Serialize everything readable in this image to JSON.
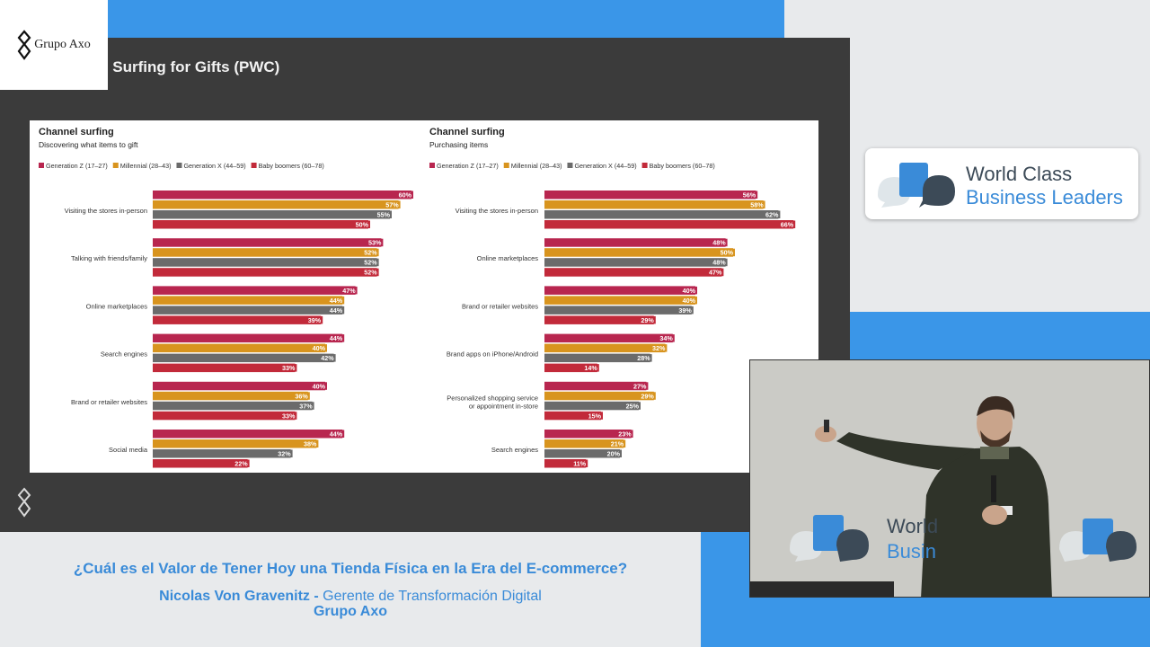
{
  "logo": {
    "text": "Grupo Axo"
  },
  "slide": {
    "title": "nel Surfing for Gifts (PWC)"
  },
  "legend": [
    {
      "name": "Generation Z (17–27)",
      "color": "#b8264f"
    },
    {
      "name": "Millennial (28–43)",
      "color": "#d8941e"
    },
    {
      "name": "Generation X (44–59)",
      "color": "#6b6b6b"
    },
    {
      "name": "Baby boomers (60–78)",
      "color": "#c22a3a"
    }
  ],
  "chart_data": [
    {
      "type": "bar",
      "title": "Channel surfing",
      "subtitle": "Discovering what items to gift",
      "categories": [
        "Visiting the stores in-person",
        "Talking with friends/family",
        "Online marketplaces",
        "Search engines",
        "Brand or retailer websites",
        "Social media"
      ],
      "series": [
        {
          "name": "Generation Z (17–27)",
          "values": [
            60,
            53,
            47,
            44,
            40,
            44
          ]
        },
        {
          "name": "Millennial (28–43)",
          "values": [
            57,
            52,
            44,
            40,
            36,
            38
          ]
        },
        {
          "name": "Generation X (44–59)",
          "values": [
            55,
            52,
            44,
            42,
            37,
            32
          ]
        },
        {
          "name": "Baby boomers (60–78)",
          "values": [
            50,
            52,
            39,
            33,
            33,
            22
          ]
        }
      ]
    },
    {
      "type": "bar",
      "title": "Channel surfing",
      "subtitle": "Purchasing items",
      "categories": [
        "Visiting the stores in-person",
        "Online marketplaces",
        "Brand or retailer websites",
        "Brand apps on iPhone/Android",
        "Personalized shopping service or appointment in-store",
        "Search engines"
      ],
      "series": [
        {
          "name": "Generation Z (17–27)",
          "values": [
            56,
            48,
            40,
            34,
            27,
            23
          ]
        },
        {
          "name": "Millennial (28–43)",
          "values": [
            58,
            50,
            40,
            32,
            29,
            21
          ]
        },
        {
          "name": "Generation X (44–59)",
          "values": [
            62,
            48,
            39,
            28,
            25,
            20
          ]
        },
        {
          "name": "Baby boomers (60–78)",
          "values": [
            66,
            47,
            29,
            14,
            15,
            11
          ]
        }
      ]
    }
  ],
  "brand": {
    "line1": "World Class",
    "line2": "Business Leaders"
  },
  "video": {
    "stage_line1": "World",
    "stage_line2": "Busin"
  },
  "caption": {
    "title": "¿Cuál es el Valor de Tener Hoy una Tienda Física en la Era del E-commerce?",
    "speaker": "Nicolas Von Gravenitz",
    "separator": " - ",
    "role": "Gerente de Transformación Digital",
    "company": "Grupo Axo"
  }
}
